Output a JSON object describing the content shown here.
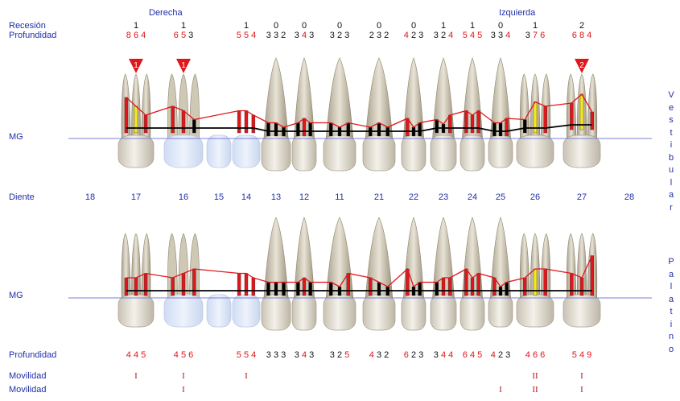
{
  "header": {
    "right_label": "Derecha",
    "left_label": "Izquierda"
  },
  "labels": {
    "recesion": "Recesión",
    "profundidad_top": "Profundidad",
    "mg_top": "MG",
    "diente": "Diente",
    "mg_bottom": "MG",
    "profundidad_bottom": "Profundidad",
    "movilidad_1": "Movilidad",
    "movilidad_2": "Movilidad",
    "vestibular": "Vestibular",
    "palatino": "Palatino"
  },
  "teeth": [
    "18",
    "17",
    "16",
    "15",
    "14",
    "13",
    "12",
    "11",
    "21",
    "22",
    "23",
    "24",
    "25",
    "26",
    "27",
    "28"
  ],
  "recesion": [
    "",
    "1",
    "1",
    "",
    "1",
    "0",
    "0",
    "0",
    "0",
    "0",
    "1",
    "1",
    "0",
    "1",
    "2",
    ""
  ],
  "profundidad_vestibular": [
    [],
    [
      [
        "8",
        "r"
      ],
      [
        "6",
        "r"
      ],
      [
        "4",
        "r"
      ]
    ],
    [
      [
        "6",
        "r"
      ],
      [
        "5",
        "r"
      ],
      [
        "3",
        "k"
      ]
    ],
    [],
    [
      [
        "5",
        "r"
      ],
      [
        "5",
        "r"
      ],
      [
        "4",
        "r"
      ]
    ],
    [
      [
        "3",
        "k"
      ],
      [
        "3",
        "k"
      ],
      [
        "2",
        "k"
      ]
    ],
    [
      [
        "3",
        "k"
      ],
      [
        "4",
        "r"
      ],
      [
        "3",
        "k"
      ]
    ],
    [
      [
        "3",
        "k"
      ],
      [
        "2",
        "k"
      ],
      [
        "3",
        "k"
      ]
    ],
    [
      [
        "2",
        "k"
      ],
      [
        "3",
        "k"
      ],
      [
        "2",
        "k"
      ]
    ],
    [
      [
        "4",
        "r"
      ],
      [
        "2",
        "k"
      ],
      [
        "3",
        "k"
      ]
    ],
    [
      [
        "3",
        "k"
      ],
      [
        "2",
        "k"
      ],
      [
        "4",
        "r"
      ]
    ],
    [
      [
        "5",
        "r"
      ],
      [
        "4",
        "r"
      ],
      [
        "5",
        "r"
      ]
    ],
    [
      [
        "3",
        "k"
      ],
      [
        "3",
        "k"
      ],
      [
        "4",
        "r"
      ]
    ],
    [
      [
        "3",
        "k"
      ],
      [
        "7",
        "r"
      ],
      [
        "6",
        "r"
      ]
    ],
    [
      [
        "6",
        "r"
      ],
      [
        "8",
        "r"
      ],
      [
        "4",
        "r"
      ]
    ],
    []
  ],
  "profundidad_palatino": [
    [],
    [
      [
        "4",
        "r"
      ],
      [
        "4",
        "r"
      ],
      [
        "5",
        "r"
      ]
    ],
    [
      [
        "4",
        "r"
      ],
      [
        "5",
        "r"
      ],
      [
        "6",
        "r"
      ]
    ],
    [],
    [
      [
        "5",
        "r"
      ],
      [
        "5",
        "r"
      ],
      [
        "4",
        "r"
      ]
    ],
    [
      [
        "3",
        "k"
      ],
      [
        "3",
        "k"
      ],
      [
        "3",
        "k"
      ]
    ],
    [
      [
        "3",
        "k"
      ],
      [
        "4",
        "r"
      ],
      [
        "3",
        "k"
      ]
    ],
    [
      [
        "3",
        "k"
      ],
      [
        "2",
        "k"
      ],
      [
        "5",
        "r"
      ]
    ],
    [
      [
        "4",
        "r"
      ],
      [
        "3",
        "k"
      ],
      [
        "2",
        "k"
      ]
    ],
    [
      [
        "6",
        "r"
      ],
      [
        "2",
        "k"
      ],
      [
        "3",
        "k"
      ]
    ],
    [
      [
        "3",
        "k"
      ],
      [
        "4",
        "r"
      ],
      [
        "4",
        "r"
      ]
    ],
    [
      [
        "6",
        "r"
      ],
      [
        "4",
        "r"
      ],
      [
        "5",
        "r"
      ]
    ],
    [
      [
        "4",
        "r"
      ],
      [
        "2",
        "k"
      ],
      [
        "3",
        "k"
      ]
    ],
    [
      [
        "4",
        "r"
      ],
      [
        "6",
        "r"
      ],
      [
        "6",
        "r"
      ]
    ],
    [
      [
        "5",
        "r"
      ],
      [
        "4",
        "r"
      ],
      [
        "9",
        "r"
      ]
    ],
    []
  ],
  "movilidad_1": [
    "",
    "I",
    "I",
    "",
    "I",
    "",
    "",
    "",
    "",
    "",
    "",
    "",
    "",
    "II",
    "I",
    ""
  ],
  "movilidad_2": [
    "",
    "",
    "I",
    "",
    "",
    "",
    "",
    "",
    "",
    "",
    "",
    "",
    "I",
    "II",
    "I",
    ""
  ],
  "furcation_markers": [
    {
      "tooth": "17",
      "value": "1"
    },
    {
      "tooth": "16",
      "value": "1"
    },
    {
      "tooth": "27",
      "value": "2"
    }
  ],
  "colors": {
    "label_blue": "#1f2fa8",
    "red": "#e0161b",
    "yellow": "#f5ea1a",
    "gum_line": "#7a7fd6"
  }
}
